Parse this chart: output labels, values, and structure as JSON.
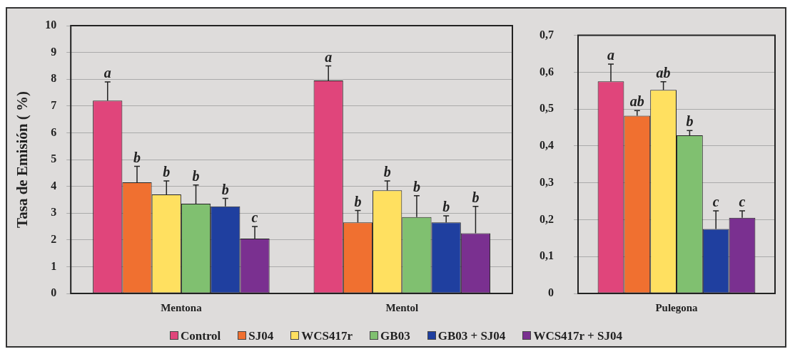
{
  "chart_data": [
    {
      "type": "bar",
      "ylabel": "Tasa de Emisión ( %)",
      "categories": [
        "Mentona",
        "Mentol"
      ],
      "legend": "bottom",
      "grid": "y",
      "ylim": [
        0,
        10
      ],
      "yticks": [
        0,
        1,
        2,
        3,
        4,
        5,
        6,
        7,
        8,
        9,
        10
      ],
      "series": [
        {
          "name": "Control",
          "color": "#e0457b",
          "values": [
            7.2,
            7.95
          ],
          "errors": [
            [
              7.2,
              7.9
            ],
            [
              7.95,
              8.5
            ]
          ]
        },
        {
          "name": "SJ04",
          "color": "#f07030",
          "values": [
            4.15,
            2.65
          ],
          "errors": [
            [
              4.15,
              4.75
            ],
            [
              2.65,
              3.1
            ]
          ]
        },
        {
          "name": "WCS417r",
          "color": "#ffe060",
          "values": [
            3.7,
            3.85
          ],
          "errors": [
            [
              3.7,
              4.2
            ],
            [
              3.85,
              4.2
            ]
          ]
        },
        {
          "name": "GB03",
          "color": "#80c070",
          "values": [
            3.35,
            2.85
          ],
          "errors": [
            [
              3.35,
              4.05
            ],
            [
              2.85,
              3.65
            ]
          ]
        },
        {
          "name": "GB03 + SJ04",
          "color": "#1f3f9f",
          "values": [
            3.25,
            2.65
          ],
          "errors": [
            [
              3.25,
              3.55
            ],
            [
              2.65,
              2.9
            ]
          ]
        },
        {
          "name": "WCS417r + SJ04",
          "color": "#7a3090",
          "values": [
            2.05,
            2.25
          ],
          "errors": [
            [
              2.05,
              2.5
            ],
            [
              2.25,
              3.25
            ]
          ]
        }
      ],
      "annotations": [
        "a",
        "b",
        "b",
        "b",
        "b",
        "c",
        "a",
        "b",
        "b",
        "b",
        "b",
        "b"
      ]
    },
    {
      "type": "bar",
      "categories": [
        "Pulegona"
      ],
      "grid": "y",
      "ylim": [
        0,
        0.7
      ],
      "yticks": [
        0,
        {
          "value": 0.1,
          "label": "0,1"
        },
        {
          "value": 0.2,
          "label": "0,2"
        },
        {
          "value": 0.3,
          "label": "0,3"
        },
        {
          "value": 0.4,
          "label": "0,4"
        },
        {
          "value": 0.5,
          "label": "0,5"
        },
        {
          "value": 0.6,
          "label": "0,6"
        },
        {
          "value": 0.7,
          "label": "0,7"
        }
      ],
      "series": [
        {
          "color": "#e0457b",
          "values": [
            0.575
          ],
          "errors": [
            [
              0.575,
              0.622
            ]
          ]
        },
        {
          "color": "#f07030",
          "values": [
            0.482
          ],
          "errors": [
            [
              0.482,
              0.496
            ]
          ]
        },
        {
          "color": "#ffe060",
          "values": [
            0.552
          ],
          "errors": [
            [
              0.552,
              0.574
            ]
          ]
        },
        {
          "color": "#80c070",
          "values": [
            0.429
          ],
          "errors": [
            [
              0.429,
              0.442
            ]
          ]
        },
        {
          "color": "#1f3f9f",
          "values": [
            0.175
          ],
          "errors": [
            [
              0.175,
              0.224
            ]
          ]
        },
        {
          "color": "#7a3090",
          "values": [
            0.205
          ],
          "errors": [
            [
              0.205,
              0.224
            ]
          ]
        }
      ],
      "annotations": [
        "a",
        "ab",
        "ab",
        "b",
        "c",
        "c"
      ]
    }
  ]
}
